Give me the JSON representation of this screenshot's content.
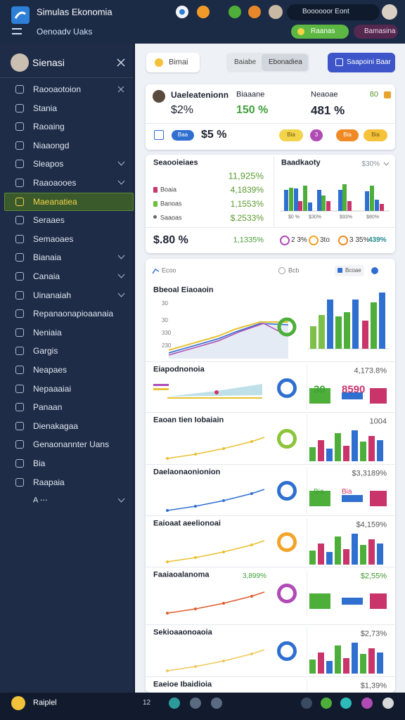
{
  "header": {
    "title": "Simulas Ekonomia",
    "subtitle": "Oenoadv Uaks",
    "user": "Boooooor Eont",
    "buttons": [
      "Raanas",
      "Bamasina"
    ]
  },
  "sidebar": {
    "title": "Sienasi",
    "items": [
      "Raooaotoion",
      "Stania",
      "Raoaing",
      "Niaaongd",
      "Sleapos",
      "Raaoaooes",
      "Maeanatiea",
      "Seraaes",
      "Semaoaes",
      "Bianaia",
      "Canaia",
      "Uinanaiah",
      "Repanaonapioaanaia",
      "Neniaia",
      "Gargis",
      "Neapaes",
      "Nepaaaiai",
      "Panaan",
      "Dienakagaa",
      "Genaonannter Uans",
      "Bia",
      "Raapaia"
    ],
    "active": "Maeanatiea",
    "footer": "A ⋯"
  },
  "toolbar": {
    "search": "Bimai",
    "tabs": [
      "Baiabe",
      "Ebonadiea"
    ],
    "action": "Saapoini Baar"
  },
  "kpi": {
    "name": "Uaeleatenionn",
    "value": "$2%",
    "stats": [
      {
        "label": "Biaaane",
        "value": "150 %"
      },
      {
        "label": "Neaoae",
        "value": "481 %"
      }
    ],
    "corner": "80",
    "foot_value": "$5 %",
    "pills": [
      "Baa",
      "Bia",
      "3",
      "Bia",
      "Bia"
    ]
  },
  "summary": {
    "title": "Seaooieiaes",
    "title_value": "11,925%",
    "rows": [
      {
        "label": "Boaia",
        "value": "4,1839%"
      },
      {
        "label": "Banoas",
        "value": "1,1553%"
      },
      {
        "label": "Saaoas",
        "value": "$.2533%"
      }
    ],
    "chart": {
      "title": "Baadkaoty",
      "value": "$30%",
      "labels": [
        "$0 %",
        "$30%",
        "$93%",
        "$80%"
      ]
    },
    "bottom": {
      "value": "$.80 %",
      "change": "1,1335%",
      "pills": [
        "2 3%",
        "3to",
        "3 35%",
        "439%"
      ]
    }
  },
  "analytics": {
    "filter": "Ecoo",
    "controls": [
      "Bcb",
      "Bcoae"
    ],
    "main": {
      "title": "Bbeoal Eiaoaoin",
      "ylabels": [
        "30",
        "30",
        "330",
        "230"
      ]
    },
    "rows": [
      {
        "title": "Eiapodnonoia",
        "value": "4,173.8%",
        "badges": [
          "30",
          "8590"
        ]
      },
      {
        "title": "Eaoan tien Iobaiain",
        "value": "1004",
        "badges": []
      },
      {
        "title": "Daelaonaonionion",
        "value": "$3,3189%",
        "badges": [
          "Bia",
          "Bia"
        ]
      },
      {
        "title": "Eaioaat aeelionoai",
        "value": "$4,159%",
        "badges": []
      },
      {
        "title": "Faaiaoalanoma",
        "value": "$2,55%",
        "badges": [
          "3,899%"
        ]
      },
      {
        "title": "Sekioaaonoaoia",
        "value": "$2,73%",
        "badges": []
      },
      {
        "title": "Eaeioe Ibaidioia",
        "value": "$1,39%",
        "badges": []
      }
    ]
  },
  "footer": {
    "label": "Raiplel",
    "count": "12"
  }
}
